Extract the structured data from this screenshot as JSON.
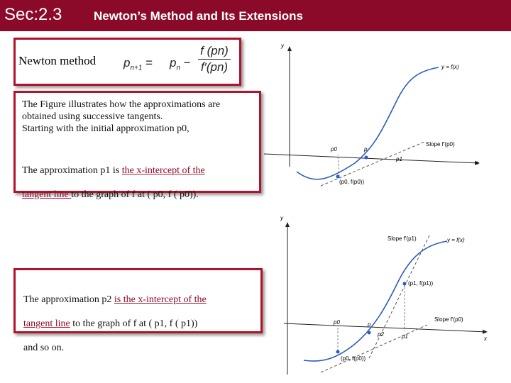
{
  "header": {
    "section": "Sec:2.3",
    "title": "Newton’s Method and Its Extensions"
  },
  "formula_box": {
    "label": "Newton method",
    "lhs": "p",
    "lhs_sub": "n+1",
    "rhs_p": "p",
    "rhs_sub": "n",
    "eq": "=",
    "minus": "−",
    "numerator": "f (pn)",
    "denominator": "f′(pn)"
  },
  "box2": {
    "intro": "The Figure illustrates how the approximations are\nobtained using successive tangents.\nStarting with the initial approximation p0,",
    "line1_pre": "The approximation p1 is ",
    "line1_link": "the x-intercept of the",
    "line2_link": "tangent line ",
    "line2_post": "to the graph of f at ( p0, f ( p0))."
  },
  "box3": {
    "line1_pre": "The approximation p2 ",
    "line1_link": "is the x-intercept of the",
    "line2_link": "tangent line",
    "line2_post": " to the graph of f at ( p1, f ( p1))",
    "line3": "and so on."
  },
  "figure_top": {
    "y_axis": "y",
    "x_axis": "x",
    "curve": "y = f(x)",
    "slope": "Slope f′(p0)",
    "p0": "p0",
    "p": "p",
    "p1": "p1",
    "point": "(p0, f(p0))"
  },
  "figure_bottom": {
    "y_axis": "y",
    "x_axis": "x",
    "curve": "y = f(x)",
    "slope_top": "Slope f′(p1)",
    "slope_bottom": "Slope f′(p0)",
    "point_p1": "(p1, f(p1))",
    "p0": "p0",
    "p": "p",
    "p2": "p2",
    "p1": "p1",
    "point_p0": "(p0, f(p0))"
  }
}
